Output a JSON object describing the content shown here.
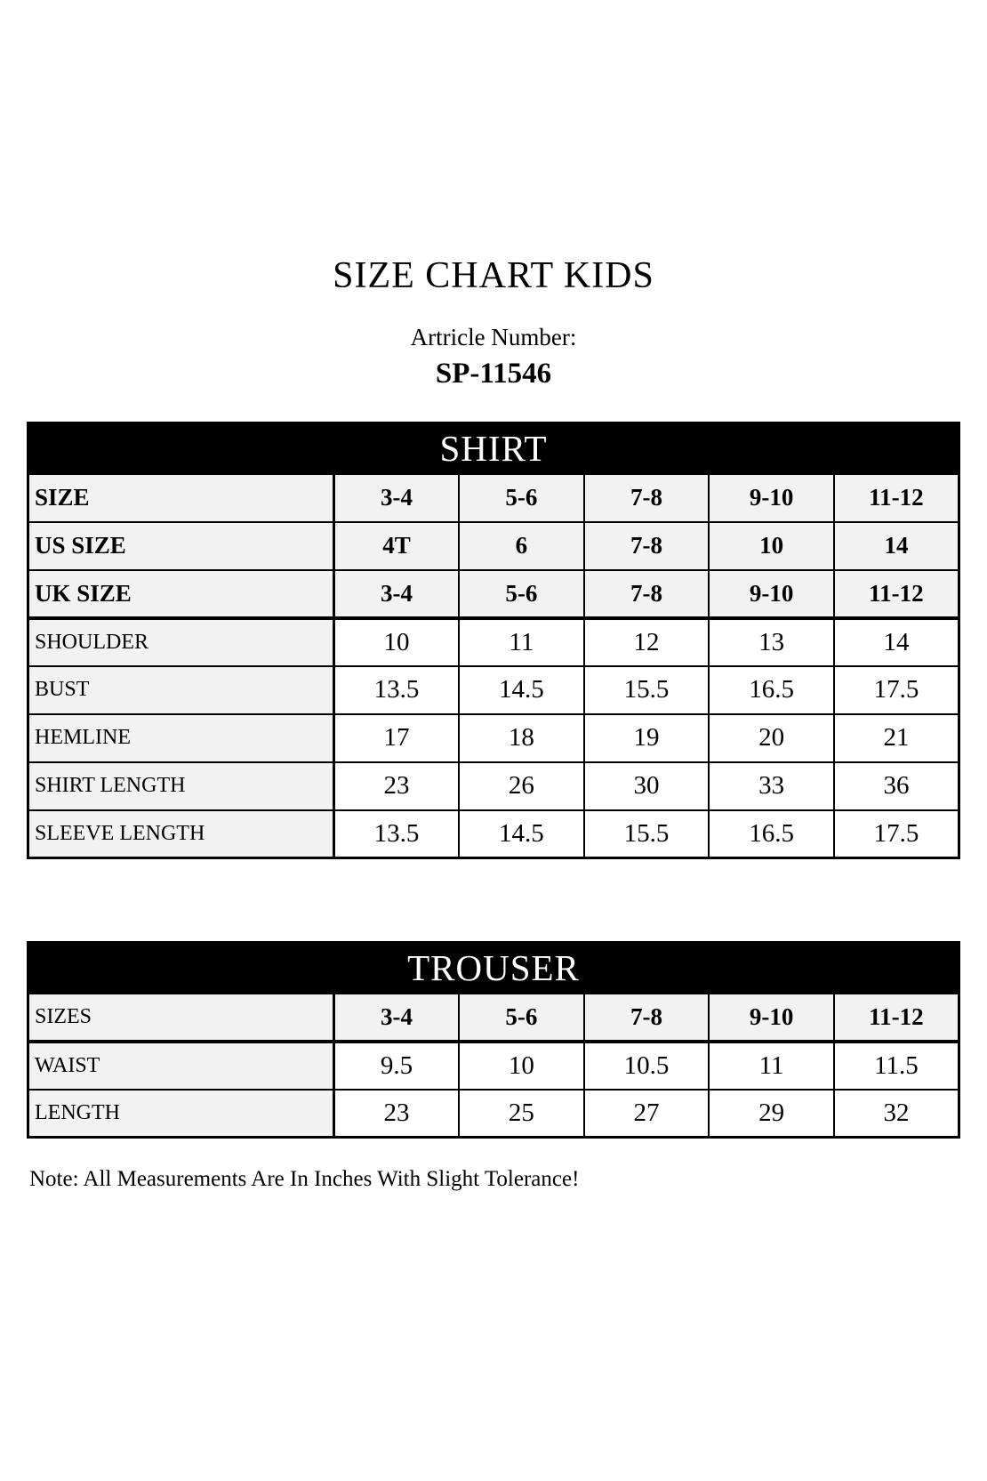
{
  "colors": {
    "page_bg": "#ffffff",
    "text": "#000000",
    "band_bg": "#000000",
    "band_text": "#ffffff",
    "row_bg": "#f2f2f2",
    "cell_bg": "#ffffff",
    "border": "#000000"
  },
  "header": {
    "title": "SIZE CHART KIDS",
    "article_label": "Artricle Number:",
    "article_number": "SP-11546"
  },
  "shirt": {
    "header": "SHIRT",
    "rows": [
      {
        "kind": "size",
        "label": "SIZE",
        "values": [
          "3-4",
          "5-6",
          "7-8",
          "9-10",
          "11-12"
        ]
      },
      {
        "kind": "size",
        "label": "US SIZE",
        "values": [
          "4T",
          "6",
          "7-8",
          "10",
          "14"
        ]
      },
      {
        "kind": "size",
        "label": "UK SIZE",
        "values": [
          "3-4",
          "5-6",
          "7-8",
          "9-10",
          "11-12"
        ]
      },
      {
        "kind": "measurement",
        "label": "SHOULDER",
        "values": [
          "10",
          "11",
          "12",
          "13",
          "14"
        ]
      },
      {
        "kind": "measurement",
        "label": "BUST",
        "values": [
          "13.5",
          "14.5",
          "15.5",
          "16.5",
          "17.5"
        ]
      },
      {
        "kind": "measurement",
        "label": "HEMLINE",
        "values": [
          "17",
          "18",
          "19",
          "20",
          "21"
        ]
      },
      {
        "kind": "measurement",
        "label": "SHIRT LENGTH",
        "values": [
          "23",
          "26",
          "30",
          "33",
          "36"
        ]
      },
      {
        "kind": "measurement",
        "label": "SLEEVE LENGTH",
        "values": [
          "13.5",
          "14.5",
          "15.5",
          "16.5",
          "17.5"
        ]
      }
    ]
  },
  "trouser": {
    "header": "TROUSER",
    "rows": [
      {
        "kind": "size",
        "label": "SIZES",
        "values": [
          "3-4",
          "5-6",
          "7-8",
          "9-10",
          "11-12"
        ]
      },
      {
        "kind": "measurement",
        "label": "WAIST",
        "values": [
          "9.5",
          "10",
          "10.5",
          "11",
          "11.5"
        ]
      },
      {
        "kind": "measurement",
        "label": "LENGTH",
        "values": [
          "23",
          "25",
          "27",
          "29",
          "32"
        ]
      }
    ]
  },
  "footer": {
    "note": "Note: All Measurements Are In Inches With Slight Tolerance!"
  }
}
